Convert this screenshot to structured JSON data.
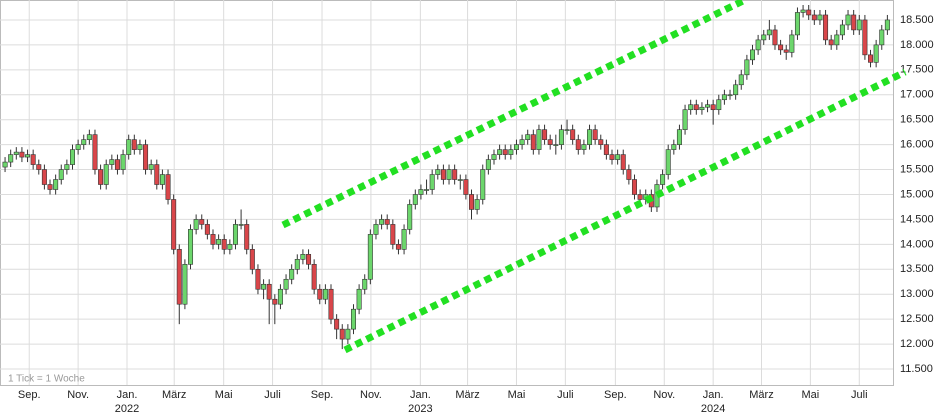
{
  "chart_data": {
    "type": "candlestick",
    "annotation": "1 Tick = 1 Woche",
    "up_color": "#6cd66c",
    "down_color": "#d9464a",
    "grid": true,
    "xlim": [
      -0.9,
      158
    ],
    "ylim": [
      11180,
      18900
    ],
    "yticks": [
      {
        "value": 11500,
        "label": "11.500"
      },
      {
        "value": 12000,
        "label": "12.000"
      },
      {
        "value": 12500,
        "label": "12.500"
      },
      {
        "value": 13000,
        "label": "13.000"
      },
      {
        "value": 13500,
        "label": "13.500"
      },
      {
        "value": 14000,
        "label": "14.000"
      },
      {
        "value": 14500,
        "label": "14.500"
      },
      {
        "value": 15000,
        "label": "15.000"
      },
      {
        "value": 15500,
        "label": "15.500"
      },
      {
        "value": 16000,
        "label": "16.000"
      },
      {
        "value": 16500,
        "label": "16.500"
      },
      {
        "value": 17000,
        "label": "17.000"
      },
      {
        "value": 17500,
        "label": "17.500"
      },
      {
        "value": 18000,
        "label": "18.000"
      },
      {
        "value": 18500,
        "label": "18.500"
      }
    ],
    "xticks": [
      {
        "value": 4.3,
        "label": "Sep."
      },
      {
        "value": 13,
        "label": "Nov."
      },
      {
        "value": 21.7,
        "label": "Jan."
      },
      {
        "value": 30.1,
        "label": "März"
      },
      {
        "value": 38.9,
        "label": "Mai"
      },
      {
        "value": 47.6,
        "label": "Juli"
      },
      {
        "value": 56.4,
        "label": "Sep."
      },
      {
        "value": 65.1,
        "label": "Nov."
      },
      {
        "value": 73.9,
        "label": "Jan."
      },
      {
        "value": 82.3,
        "label": "März"
      },
      {
        "value": 91,
        "label": "Mai"
      },
      {
        "value": 99.7,
        "label": "Juli"
      },
      {
        "value": 108.6,
        "label": "Sep."
      },
      {
        "value": 117.3,
        "label": "Nov."
      },
      {
        "value": 126,
        "label": "Jan."
      },
      {
        "value": 134.6,
        "label": "März"
      },
      {
        "value": 143.3,
        "label": "Mai"
      },
      {
        "value": 152,
        "label": "Juli"
      }
    ],
    "year_ticks": [
      {
        "value": 21.7,
        "label": "2022"
      },
      {
        "value": 73.9,
        "label": "2023"
      },
      {
        "value": 126,
        "label": "2024"
      }
    ],
    "open": [
      15550,
      15650,
      15800,
      15850,
      15750,
      15800,
      15600,
      15500,
      15200,
      15100,
      15300,
      15500,
      15600,
      15900,
      16000,
      16100,
      16200,
      15500,
      15200,
      15600,
      15700,
      15500,
      15800,
      16100,
      15900,
      16000,
      15500,
      15600,
      15200,
      15400,
      14900,
      13900,
      12800,
      13600,
      14300,
      14500,
      14400,
      14200,
      14000,
      14100,
      13900,
      14000,
      14400,
      14400,
      13900,
      13500,
      13100,
      13200,
      12900,
      12800,
      13100,
      13300,
      13500,
      13700,
      13800,
      13600,
      13100,
      12900,
      13100,
      12500,
      12300,
      12100,
      12300,
      12700,
      13100,
      13300,
      14200,
      14400,
      14500,
      14400,
      14000,
      13900,
      14300,
      14800,
      15000,
      15100,
      15100,
      15400,
      15500,
      15300,
      15500,
      15300,
      15300,
      15000,
      14700,
      14900,
      15500,
      15700,
      15800,
      15900,
      15800,
      15900,
      16000,
      16100,
      16200,
      15900,
      16300,
      16100,
      16000,
      16000,
      16300,
      16300,
      16100,
      15900,
      16000,
      16300,
      16100,
      16000,
      15800,
      15700,
      15800,
      15500,
      15300,
      15000,
      14900,
      15000,
      14750,
      15200,
      15400,
      15900,
      16000,
      16300,
      16700,
      16800,
      16700,
      16750,
      16800,
      16700,
      16900,
      17000,
      17000,
      17200,
      17400,
      17700,
      17900,
      18100,
      18200,
      18300,
      18000,
      17900,
      17850,
      18200,
      18650,
      18700,
      18600,
      18500,
      18600,
      18100,
      18000,
      18200,
      18400,
      18600,
      18300,
      18500,
      17800,
      17650,
      18000,
      18300
    ],
    "high": [
      15750,
      15900,
      15950,
      15950,
      15900,
      15900,
      15700,
      15600,
      15300,
      15400,
      15600,
      15700,
      16000,
      16100,
      16200,
      16300,
      16300,
      15600,
      15700,
      15800,
      15800,
      15900,
      16200,
      16200,
      16100,
      16100,
      15700,
      15700,
      15500,
      15500,
      15000,
      14000,
      13700,
      14400,
      14600,
      14600,
      14500,
      14300,
      14200,
      14200,
      14100,
      14500,
      14700,
      14500,
      14000,
      13600,
      13300,
      13300,
      13000,
      13200,
      13400,
      13600,
      13800,
      13900,
      13900,
      13700,
      13200,
      13200,
      13200,
      12600,
      12400,
      12400,
      12800,
      13200,
      13400,
      14300,
      14500,
      14600,
      14600,
      14500,
      14100,
      14400,
      14900,
      15100,
      15200,
      15300,
      15500,
      15600,
      15600,
      15600,
      15600,
      15400,
      15400,
      15100,
      15000,
      15600,
      15800,
      15900,
      16000,
      16000,
      16000,
      16100,
      16200,
      16300,
      16300,
      16400,
      16400,
      16200,
      16200,
      16400,
      16500,
      16400,
      16200,
      16100,
      16400,
      16400,
      16200,
      16100,
      15900,
      15900,
      15900,
      15600,
      15400,
      15100,
      15100,
      15100,
      15300,
      15500,
      16000,
      16100,
      16400,
      16800,
      16900,
      16900,
      16850,
      16900,
      16900,
      17000,
      17100,
      17100,
      17300,
      17500,
      17800,
      18000,
      18200,
      18300,
      18500,
      18400,
      18100,
      18000,
      18300,
      18750,
      18800,
      18800,
      18700,
      18700,
      18700,
      18200,
      18300,
      18500,
      18700,
      18700,
      18600,
      18600,
      17900,
      18100,
      18400,
      18600
    ],
    "low": [
      15450,
      15550,
      15700,
      15650,
      15650,
      15500,
      15400,
      15100,
      15000,
      15000,
      15200,
      15400,
      15500,
      15800,
      15900,
      16000,
      15400,
      15100,
      15100,
      15500,
      15400,
      15400,
      15700,
      15800,
      15800,
      15400,
      15400,
      15100,
      15100,
      14800,
      13800,
      12400,
      12700,
      13500,
      14200,
      14300,
      14100,
      13900,
      13900,
      13800,
      13800,
      13900,
      14300,
      13800,
      13400,
      13000,
      12900,
      12400,
      12400,
      12700,
      13000,
      13200,
      13400,
      13600,
      13500,
      13000,
      12800,
      12800,
      12400,
      12100,
      11900,
      12000,
      12200,
      12600,
      13000,
      13200,
      14100,
      14300,
      14300,
      13900,
      13800,
      13800,
      14200,
      14700,
      14900,
      15000,
      15000,
      15300,
      15200,
      15200,
      15200,
      15100,
      14900,
      14500,
      14600,
      14800,
      15400,
      15600,
      15700,
      15700,
      15700,
      15800,
      15900,
      16000,
      15800,
      15800,
      16000,
      15900,
      15800,
      15900,
      16200,
      16000,
      15800,
      15800,
      15900,
      16000,
      15900,
      15700,
      15600,
      15600,
      15400,
      15200,
      14900,
      14800,
      14800,
      14650,
      14650,
      15100,
      15300,
      15800,
      15900,
      16200,
      16600,
      16600,
      16600,
      16650,
      16400,
      16600,
      16800,
      16900,
      16900,
      17100,
      17300,
      17600,
      17800,
      18000,
      18100,
      17900,
      17800,
      17700,
      17750,
      18100,
      18550,
      18500,
      18400,
      18400,
      18000,
      17900,
      17900,
      18100,
      18300,
      18200,
      18200,
      17700,
      17550,
      17550,
      17900,
      18200
    ],
    "close": [
      15650,
      15800,
      15850,
      15750,
      15800,
      15600,
      15500,
      15200,
      15100,
      15300,
      15500,
      15600,
      15900,
      16000,
      16100,
      16200,
      15500,
      15200,
      15600,
      15700,
      15500,
      15800,
      16100,
      15900,
      16000,
      15500,
      15600,
      15200,
      15400,
      14900,
      13900,
      12800,
      13600,
      14300,
      14500,
      14400,
      14200,
      14000,
      14100,
      13900,
      14000,
      14400,
      14400,
      13900,
      13500,
      13100,
      13200,
      12900,
      12800,
      13100,
      13300,
      13500,
      13700,
      13800,
      13600,
      13100,
      12900,
      13100,
      12500,
      12300,
      12100,
      12300,
      12700,
      13100,
      13300,
      14200,
      14400,
      14500,
      14400,
      14000,
      13900,
      14300,
      14800,
      15000,
      15100,
      15100,
      15400,
      15500,
      15300,
      15500,
      15300,
      15300,
      15000,
      14700,
      14900,
      15500,
      15700,
      15800,
      15900,
      15800,
      15900,
      16000,
      16100,
      16200,
      15900,
      16300,
      16100,
      16000,
      16000,
      16300,
      16300,
      16100,
      15900,
      16000,
      16300,
      16100,
      16000,
      15800,
      15700,
      15800,
      15500,
      15300,
      15000,
      14900,
      15000,
      14750,
      15200,
      15400,
      15900,
      16000,
      16300,
      16700,
      16800,
      16700,
      16750,
      16800,
      16700,
      16900,
      17000,
      17000,
      17200,
      17400,
      17700,
      17900,
      18100,
      18200,
      18300,
      18000,
      17900,
      17850,
      18200,
      18650,
      18700,
      18600,
      18500,
      18600,
      18100,
      18000,
      18200,
      18400,
      18600,
      18300,
      18500,
      17800,
      17650,
      18000,
      18300,
      18500
    ]
  }
}
